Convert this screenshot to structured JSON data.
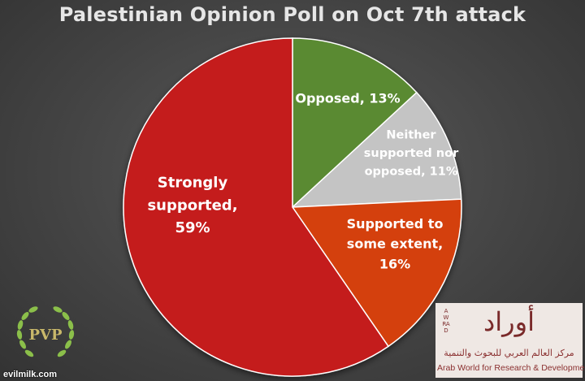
{
  "chart_data": {
    "type": "pie",
    "title": "Palestinian Opinion Poll on Oct 7th attack",
    "slices": [
      {
        "label_lines": [
          "Opposed, 13%"
        ],
        "value": 13,
        "color": "#5a8a32"
      },
      {
        "label_lines": [
          "Neither",
          "supported nor",
          "opposed, 11%"
        ],
        "value": 11,
        "color": "#c4c4c4"
      },
      {
        "label_lines": [
          "Supported to",
          "some extent,",
          "16%"
        ],
        "value": 16,
        "color": "#d4400e"
      },
      {
        "label_lines": [
          "Strongly",
          "supported,",
          "59%"
        ],
        "value": 59,
        "color": "#c41a1a"
      }
    ]
  },
  "logos": {
    "pvp_text": "PVP",
    "awrad_vertical": "AWRAD",
    "awrad_arabic": "مركز العالم العربي للبحوث والتنمية",
    "awrad_english": "Arab World for Research & Development"
  },
  "watermark": "evilmilk.com"
}
